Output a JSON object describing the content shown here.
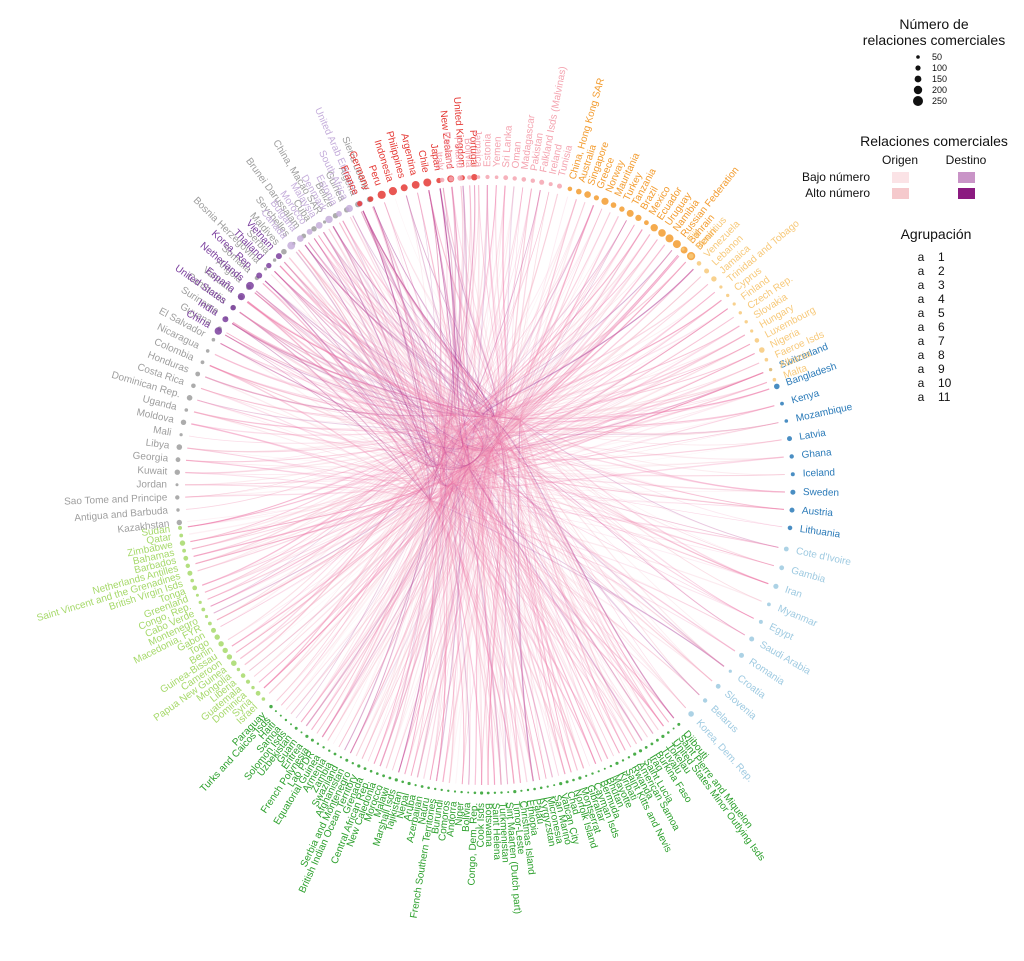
{
  "legend": {
    "size_title_line1": "Número de",
    "size_title_line2": "relaciones comerciales",
    "size_values": [
      "50",
      "100",
      "150",
      "200",
      "250"
    ],
    "rel_title": "Relaciones comerciales",
    "origin_label": "Origen",
    "dest_label": "Destino",
    "low_label": "Bajo número",
    "high_label": "Alto número",
    "origin_low_color": "#fbe3e6",
    "origin_high_color": "#f5c9cc",
    "dest_low_color": "#c994c7",
    "dest_high_color": "#8b1a80",
    "group_title": "Agrupación",
    "group_glyph": "a",
    "groups": [
      {
        "id": "1",
        "color": "#7b3f9e"
      },
      {
        "id": "2",
        "color": "#c5aedb"
      },
      {
        "id": "3",
        "color": "#e53935"
      },
      {
        "id": "4",
        "color": "#f4a4b0"
      },
      {
        "id": "5",
        "color": "#f39c2f"
      },
      {
        "id": "6",
        "color": "#f7c97a"
      },
      {
        "id": "7",
        "color": "#2a7ab8"
      },
      {
        "id": "8",
        "color": "#9ecae1"
      },
      {
        "id": "9",
        "color": "#2ca02c"
      },
      {
        "id": "10",
        "color": "#a6d96a"
      },
      {
        "id": "11",
        "color": "#9e9e9e"
      }
    ]
  },
  "edge_colors": {
    "main": "#ee6fa5",
    "light": "#f5b8c9",
    "dark": "#9b1f8a"
  },
  "segments": [
    {
      "group": 7,
      "start": 68,
      "end": 98,
      "names": [
        "Switzerland",
        "Bangladesh",
        "Kenya",
        "Mozambique",
        "Latvia",
        "Ghana",
        "Iceland",
        "Sweden",
        "Austria",
        "Lithuania"
      ]
    },
    {
      "group": 8,
      "start": 102,
      "end": 138,
      "names": [
        "Cote d'Ivoire",
        "Gambia",
        "Iran",
        "Myanmar",
        "Egypt",
        "Saudi Arabia",
        "Romania",
        "Croatia",
        "Slovenia",
        "Belarus",
        "Korea, Dem. Rep."
      ]
    },
    {
      "group": 9,
      "start": 141,
      "end": 224,
      "names": [
        "Djibouti",
        "Saint Pierre and Miquelon",
        "United States Minor Outlying Isds",
        "Tokelau",
        "Tuvalu",
        "Burkina Faso",
        "Iraq",
        "Saint Lucia",
        "American Samoa",
        "Rwanda",
        "Saint Kitts and Nevis",
        "Kiribati",
        "Mayotte",
        "Bhutan",
        "Bermuda",
        "Cayman Isds",
        "Gibraltar",
        "Montserrat",
        "Norfolk Island",
        "Chad",
        "Vatican City",
        "San Marino",
        "Micronesia",
        "Kyrgyzstan",
        "Palau",
        "Ethiopia",
        "Christmas Island",
        "Timor-Leste",
        "Sint Maarten (Dutch part)",
        "Turkmenistan",
        "Saint Helena",
        "Botswana",
        "Cook Isds",
        "Congo, Dem. Rep.",
        "Bolivia",
        "Niger",
        "Andorra",
        "Comoros",
        "Burundi",
        "French Southern Territories",
        "Nauru",
        "Azerbaijan",
        "Aruba",
        "Nepal",
        "Tajikistan",
        "Marshall Isds",
        "Malawi",
        "Morocco",
        "New Caledonia",
        "Central African Rep.",
        "Grenada",
        "British Indian Ocean Territory",
        "Serbia and Montenegro",
        "Afghanistan",
        "Swaziland",
        "Zambia",
        "Armenia",
        "Equatorial Guinea",
        "Lao PDR",
        "French Polynesia",
        "Eritrea",
        "Guam",
        "Uzbekistan",
        "Solomon Isds",
        "Samoa",
        "Haiti",
        "Turks and Caicos Isds",
        "Paraguay"
      ]
    },
    {
      "group": 10,
      "start": 226,
      "end": 262,
      "names": [
        "Israel",
        "Syria",
        "Dominica",
        "Guatemala",
        "Liberia",
        "Mongolia",
        "Papua New Guinea",
        "Cameroon",
        "Guinea-Bissau",
        "Benin",
        "Togo",
        "Gabon",
        "Macedonia, FYR",
        "Montenegro",
        "Cabo Verde",
        "Congo, Rep.",
        "Greenland",
        "Tonga",
        "British Virgin Isds",
        "Saint Vincent and the Grenadines",
        "Netherlands Antilles",
        "Barbados",
        "Bahamas",
        "Zimbabwe",
        "Qatar",
        "Sudan"
      ]
    },
    {
      "group": 11,
      "start": 263,
      "end": 338,
      "names": [
        "Kazakhstan",
        "Antigua and Barbuda",
        "Sao Tome and Principe",
        "Jordan",
        "Kuwait",
        "Georgia",
        "Libya",
        "Mali",
        "Moldova",
        "Uganda",
        "Dominican Rep.",
        "Costa Rica",
        "Honduras",
        "Colombia",
        "Nicaragua",
        "El Salvador",
        "Guyana",
        "Suriname",
        "Cambodia",
        "Vanuatu",
        "Angola",
        "Somalia",
        "Bosnia Herzegovina",
        "Serbia",
        "Maldives",
        "Seychelles",
        "Brunei Darussalam",
        "Cuba",
        "China, Macao SAR",
        "Belize",
        "Guinea",
        "Algeria",
        "Sierra Leone"
      ]
    },
    {
      "group": 1,
      "start": 300,
      "end": 318,
      "names": [
        "China",
        "India",
        "United States",
        "España",
        "Netherlands",
        "Korea, Rep.",
        "Thailand",
        "Vietnam"
      ]
    },
    {
      "group": 2,
      "start": 321,
      "end": 336,
      "names": [
        "Canada",
        "Bulgaria",
        "Morocco",
        "Malaysia",
        "Denmark",
        "Estonia",
        "South Africa",
        "United Arab Emirates"
      ]
    },
    {
      "group": 3,
      "start": 336,
      "end": 358,
      "names": [
        "France",
        "Germany",
        "Peru",
        "Indonesia",
        "Philippines",
        "Argentina",
        "Chile",
        "Japan",
        "New Zealand",
        "United Kingdom",
        "Portugal"
      ]
    },
    {
      "group": 4,
      "start": 352,
      "end": 374,
      "names": [
        "Italy",
        "Panama",
        "Poland",
        "Bolivia",
        "Jamaica",
        "Estonia",
        "Yemen",
        "Sri Lanka",
        "Oman",
        "Madagascar",
        "Pakistan",
        "Falkland Isds (Malvinas)",
        "Ireland",
        "Tunisia"
      ]
    },
    {
      "group": 5,
      "start": 376,
      "end": 402,
      "names": [
        "China, Hong Kong SAR",
        "Australia",
        "Singapore",
        "Greece",
        "Norway",
        "Mauritania",
        "Turkey",
        "Tanzania",
        "Brazil",
        "Mexico",
        "Ecuador",
        "Uruguay",
        "Namibia",
        "Russian Federation",
        "Bahrain",
        "Benin"
      ]
    },
    {
      "group": 6,
      "start": 400,
      "end": 430,
      "names": [
        "Fiji",
        "Mauritius",
        "Venezuela",
        "Lebanon",
        "Jamaica",
        "Trinidad and Tobago",
        "Cyprus",
        "Finland",
        "Czech Rep.",
        "Slovakia",
        "Hungary",
        "Luxembourg",
        "Nigeria",
        "Faeroe Isds",
        "Albania",
        "Malta"
      ]
    }
  ]
}
